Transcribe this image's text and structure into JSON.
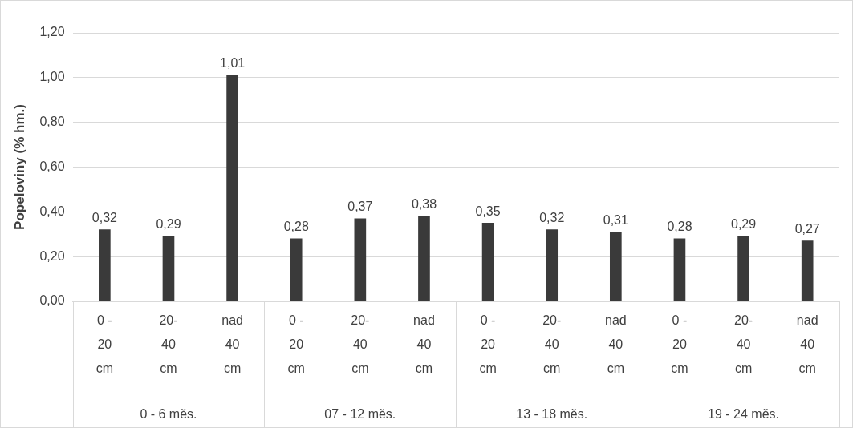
{
  "chart_data": {
    "type": "bar",
    "ylabel": "Popeloviny (% hm.)",
    "categories": [
      "0 - 20 cm",
      "20-40 cm",
      "nad 40 cm",
      "0 - 20 cm",
      "20-40 cm",
      "nad 40 cm",
      "0 - 20 cm",
      "20-40 cm",
      "nad 40 cm",
      "0 - 20 cm",
      "20-40 cm",
      "nad 40 cm"
    ],
    "values": [
      0.32,
      0.29,
      1.01,
      0.28,
      0.37,
      0.38,
      0.35,
      0.32,
      0.31,
      0.28,
      0.29,
      0.27
    ],
    "value_labels": [
      "0,32",
      "0,29",
      "1,01",
      "0,28",
      "0,37",
      "0,38",
      "0,35",
      "0,32",
      "0,31",
      "0,28",
      "0,29",
      "0,27"
    ],
    "color": "#3a3a3a",
    "ylim": [
      0,
      1.2
    ],
    "yticks": [
      {
        "value": 0,
        "label": "0,00"
      },
      {
        "value": 0.2,
        "label": "0,20"
      },
      {
        "value": 0.4,
        "label": "0,40"
      },
      {
        "value": 0.6,
        "label": "0,60"
      },
      {
        "value": 0.8,
        "label": "0,80"
      },
      {
        "value": 1,
        "label": "1,00"
      },
      {
        "value": 1.2,
        "label": "1,20"
      }
    ],
    "annotations": [
      "0 - 6 měs.",
      "07 - 12 měs.",
      "13 - 18 měs.",
      "19 - 24 měs."
    ],
    "grid": "y",
    "legend": false
  }
}
